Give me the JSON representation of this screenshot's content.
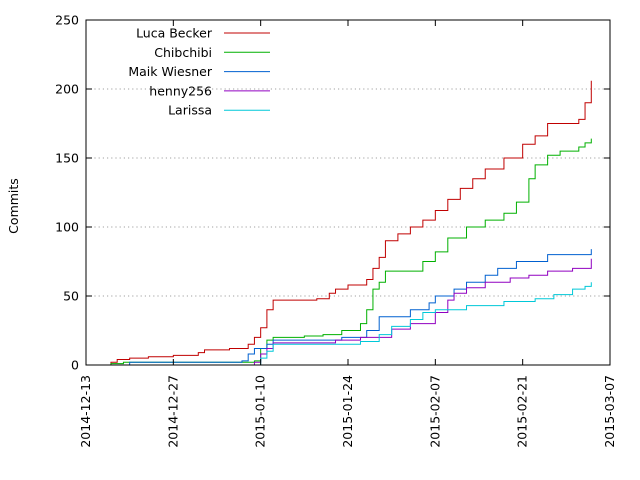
{
  "chart_data": {
    "type": "line",
    "title": "",
    "xlabel": "",
    "ylabel": "Commits",
    "x_axis": "date",
    "xlim": [
      "2014-12-13",
      "2015-03-07"
    ],
    "ylim": [
      0,
      250
    ],
    "yticks": [
      0,
      50,
      100,
      150,
      200,
      250
    ],
    "xtick_labels": [
      "2014-12-13",
      "2014-12-27",
      "2015-01-10",
      "2015-01-24",
      "2015-02-07",
      "2015-02-21",
      "2015-03-07"
    ],
    "grid": "horizontal-dotted",
    "legend": "top-left",
    "series": [
      {
        "name": "Luca Becker",
        "color": "#c00000",
        "points": [
          [
            "2014-12-16",
            0
          ],
          [
            "2014-12-17",
            2
          ],
          [
            "2014-12-18",
            4
          ],
          [
            "2014-12-20",
            5
          ],
          [
            "2014-12-23",
            6
          ],
          [
            "2014-12-27",
            7
          ],
          [
            "2014-12-31",
            9
          ],
          [
            "2015-01-01",
            11
          ],
          [
            "2015-01-05",
            12
          ],
          [
            "2015-01-08",
            15
          ],
          [
            "2015-01-09",
            20
          ],
          [
            "2015-01-10",
            27
          ],
          [
            "2015-01-11",
            40
          ],
          [
            "2015-01-12",
            47
          ],
          [
            "2015-01-19",
            48
          ],
          [
            "2015-01-21",
            52
          ],
          [
            "2015-01-22",
            55
          ],
          [
            "2015-01-24",
            58
          ],
          [
            "2015-01-27",
            62
          ],
          [
            "2015-01-28",
            70
          ],
          [
            "2015-01-29",
            78
          ],
          [
            "2015-01-30",
            90
          ],
          [
            "2015-02-01",
            95
          ],
          [
            "2015-02-03",
            100
          ],
          [
            "2015-02-05",
            105
          ],
          [
            "2015-02-07",
            112
          ],
          [
            "2015-02-09",
            120
          ],
          [
            "2015-02-11",
            128
          ],
          [
            "2015-02-13",
            135
          ],
          [
            "2015-02-15",
            142
          ],
          [
            "2015-02-18",
            150
          ],
          [
            "2015-02-21",
            160
          ],
          [
            "2015-02-23",
            166
          ],
          [
            "2015-02-25",
            175
          ],
          [
            "2015-03-02",
            178
          ],
          [
            "2015-03-03",
            190
          ],
          [
            "2015-03-04",
            206
          ]
        ]
      },
      {
        "name": "Chibchibi",
        "color": "#00b000",
        "points": [
          [
            "2014-12-16",
            0
          ],
          [
            "2014-12-17",
            1
          ],
          [
            "2014-12-19",
            2
          ],
          [
            "2015-01-09",
            3
          ],
          [
            "2015-01-10",
            12
          ],
          [
            "2015-01-11",
            18
          ],
          [
            "2015-01-12",
            20
          ],
          [
            "2015-01-17",
            21
          ],
          [
            "2015-01-20",
            22
          ],
          [
            "2015-01-23",
            25
          ],
          [
            "2015-01-26",
            30
          ],
          [
            "2015-01-27",
            40
          ],
          [
            "2015-01-28",
            55
          ],
          [
            "2015-01-29",
            60
          ],
          [
            "2015-01-30",
            68
          ],
          [
            "2015-02-05",
            75
          ],
          [
            "2015-02-07",
            82
          ],
          [
            "2015-02-09",
            92
          ],
          [
            "2015-02-12",
            100
          ],
          [
            "2015-02-15",
            105
          ],
          [
            "2015-02-18",
            110
          ],
          [
            "2015-02-20",
            118
          ],
          [
            "2015-02-22",
            135
          ],
          [
            "2015-02-23",
            145
          ],
          [
            "2015-02-25",
            152
          ],
          [
            "2015-02-27",
            155
          ],
          [
            "2015-03-02",
            158
          ],
          [
            "2015-03-03",
            161
          ],
          [
            "2015-03-04",
            164
          ]
        ]
      },
      {
        "name": "Maik Wiesner",
        "color": "#0060d0",
        "points": [
          [
            "2014-12-18",
            0
          ],
          [
            "2014-12-20",
            2
          ],
          [
            "2015-01-07",
            3
          ],
          [
            "2015-01-08",
            8
          ],
          [
            "2015-01-09",
            12
          ],
          [
            "2015-01-11",
            15
          ],
          [
            "2015-01-12",
            18
          ],
          [
            "2015-01-23",
            20
          ],
          [
            "2015-01-27",
            25
          ],
          [
            "2015-01-29",
            35
          ],
          [
            "2015-02-03",
            40
          ],
          [
            "2015-02-06",
            45
          ],
          [
            "2015-02-07",
            50
          ],
          [
            "2015-02-10",
            55
          ],
          [
            "2015-02-12",
            60
          ],
          [
            "2015-02-15",
            65
          ],
          [
            "2015-02-17",
            70
          ],
          [
            "2015-02-20",
            75
          ],
          [
            "2015-02-25",
            80
          ],
          [
            "2015-03-04",
            84
          ]
        ]
      },
      {
        "name": "henny256",
        "color": "#9000c0",
        "points": [
          [
            "2014-12-20",
            0
          ],
          [
            "2015-01-09",
            2
          ],
          [
            "2015-01-10",
            8
          ],
          [
            "2015-01-11",
            12
          ],
          [
            "2015-01-12",
            16
          ],
          [
            "2015-01-22",
            18
          ],
          [
            "2015-01-26",
            20
          ],
          [
            "2015-01-31",
            26
          ],
          [
            "2015-02-03",
            30
          ],
          [
            "2015-02-07",
            38
          ],
          [
            "2015-02-09",
            47
          ],
          [
            "2015-02-10",
            52
          ],
          [
            "2015-02-12",
            56
          ],
          [
            "2015-02-15",
            60
          ],
          [
            "2015-02-19",
            63
          ],
          [
            "2015-02-22",
            65
          ],
          [
            "2015-02-25",
            68
          ],
          [
            "2015-03-01",
            70
          ],
          [
            "2015-03-04",
            77
          ]
        ]
      },
      {
        "name": "Larissa",
        "color": "#00c8d8",
        "points": [
          [
            "2015-01-09",
            0
          ],
          [
            "2015-01-10",
            5
          ],
          [
            "2015-01-11",
            10
          ],
          [
            "2015-01-12",
            15
          ],
          [
            "2015-01-26",
            17
          ],
          [
            "2015-01-29",
            22
          ],
          [
            "2015-01-31",
            28
          ],
          [
            "2015-02-03",
            33
          ],
          [
            "2015-02-05",
            38
          ],
          [
            "2015-02-07",
            40
          ],
          [
            "2015-02-12",
            43
          ],
          [
            "2015-02-18",
            46
          ],
          [
            "2015-02-23",
            48
          ],
          [
            "2015-02-26",
            51
          ],
          [
            "2015-03-01",
            55
          ],
          [
            "2015-03-03",
            57
          ],
          [
            "2015-03-04",
            60
          ]
        ]
      }
    ]
  }
}
